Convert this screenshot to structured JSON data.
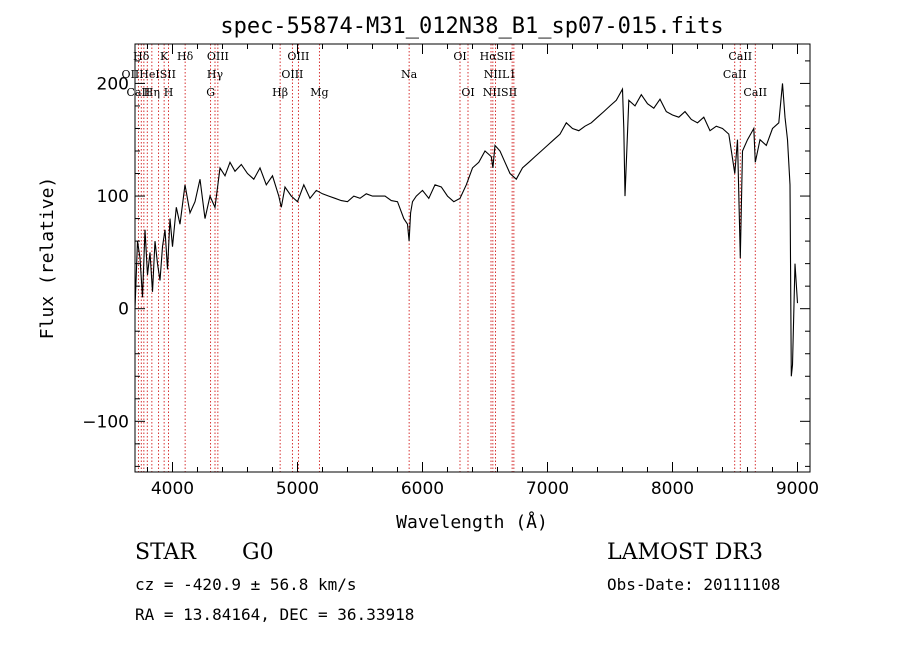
{
  "chart_data": {
    "type": "line",
    "title": "spec-55874-M31_012N38_B1_sp07-015.fits",
    "xlabel": "Wavelength (Å)",
    "ylabel": "Flux (relative)",
    "xlim": [
      3700,
      9100
    ],
    "ylim": [
      -145,
      235
    ],
    "xticks": [
      4000,
      5000,
      6000,
      7000,
      8000,
      9000
    ],
    "yticks": [
      -100,
      0,
      100,
      200
    ],
    "line_color": "#000000",
    "marker_color": "#cc0000",
    "spectrum": {
      "wavelength": [
        3700,
        3720,
        3740,
        3760,
        3780,
        3800,
        3820,
        3840,
        3860,
        3880,
        3900,
        3920,
        3940,
        3960,
        3980,
        4000,
        4030,
        4060,
        4100,
        4140,
        4180,
        4220,
        4260,
        4300,
        4340,
        4380,
        4420,
        4460,
        4500,
        4550,
        4600,
        4650,
        4700,
        4750,
        4800,
        4850,
        4870,
        4900,
        4950,
        5000,
        5050,
        5100,
        5150,
        5200,
        5250,
        5300,
        5350,
        5400,
        5450,
        5500,
        5550,
        5600,
        5650,
        5700,
        5750,
        5800,
        5850,
        5880,
        5893,
        5905,
        5920,
        5950,
        6000,
        6050,
        6100,
        6150,
        6200,
        6250,
        6300,
        6350,
        6400,
        6450,
        6500,
        6550,
        6563,
        6580,
        6620,
        6660,
        6700,
        6750,
        6800,
        6850,
        6900,
        6950,
        7000,
        7050,
        7100,
        7150,
        7200,
        7250,
        7300,
        7350,
        7400,
        7450,
        7500,
        7550,
        7600,
        7610,
        7620,
        7650,
        7700,
        7750,
        7800,
        7850,
        7900,
        7950,
        8000,
        8050,
        8100,
        8150,
        8200,
        8250,
        8300,
        8350,
        8400,
        8450,
        8498,
        8520,
        8542,
        8560,
        8600,
        8650,
        8662,
        8700,
        8750,
        8800,
        8850,
        8880,
        8900,
        8920,
        8940,
        8950,
        8960,
        8980,
        9000
      ],
      "flux": [
        0,
        60,
        45,
        10,
        70,
        30,
        50,
        15,
        60,
        40,
        25,
        55,
        70,
        35,
        80,
        55,
        90,
        75,
        110,
        85,
        95,
        115,
        80,
        100,
        90,
        125,
        118,
        130,
        122,
        128,
        120,
        115,
        125,
        110,
        118,
        100,
        90,
        108,
        100,
        95,
        110,
        98,
        105,
        102,
        100,
        98,
        96,
        95,
        100,
        98,
        102,
        100,
        100,
        100,
        96,
        95,
        80,
        75,
        60,
        85,
        95,
        100,
        105,
        98,
        110,
        108,
        100,
        95,
        98,
        110,
        125,
        130,
        140,
        135,
        125,
        145,
        140,
        130,
        120,
        115,
        125,
        130,
        135,
        140,
        145,
        150,
        155,
        165,
        160,
        158,
        162,
        165,
        170,
        175,
        180,
        185,
        195,
        160,
        100,
        185,
        180,
        190,
        182,
        178,
        186,
        175,
        172,
        170,
        175,
        168,
        165,
        170,
        158,
        162,
        160,
        155,
        120,
        150,
        45,
        140,
        150,
        160,
        130,
        150,
        145,
        160,
        165,
        200,
        170,
        150,
        110,
        -60,
        -50,
        40,
        5
      ]
    },
    "lines": [
      {
        "label": "Hδ",
        "wl": 3750,
        "row": 0
      },
      {
        "label": "K",
        "wl": 3933,
        "row": 0
      },
      {
        "label": "Hδ",
        "wl": 4101,
        "row": 0
      },
      {
        "label": "OIII",
        "wl": 4363,
        "row": 0
      },
      {
        "label": "OIII",
        "wl": 5007,
        "row": 0
      },
      {
        "label": "OI",
        "wl": 6300,
        "row": 0
      },
      {
        "label": "HαSII",
        "wl": 6590,
        "row": 0
      },
      {
        "label": "CaII",
        "wl": 8542,
        "row": 0
      },
      {
        "label": "OIIHeISII",
        "wl": 3810,
        "row": 1
      },
      {
        "label": "Hγ",
        "wl": 4340,
        "row": 1
      },
      {
        "label": "OIII",
        "wl": 4959,
        "row": 1
      },
      {
        "label": "Na",
        "wl": 5893,
        "row": 1
      },
      {
        "label": "NIIL1",
        "wl": 6620,
        "row": 1
      },
      {
        "label": "CaII",
        "wl": 8498,
        "row": 1
      },
      {
        "label": "CaII",
        "wl": 3727,
        "row": 2
      },
      {
        "label": "Hη",
        "wl": 3835,
        "row": 2
      },
      {
        "label": "H",
        "wl": 3968,
        "row": 2
      },
      {
        "label": "G",
        "wl": 4305,
        "row": 2
      },
      {
        "label": "Hβ",
        "wl": 4861,
        "row": 2
      },
      {
        "label": "Mg",
        "wl": 5175,
        "row": 2
      },
      {
        "label": "OI",
        "wl": 6364,
        "row": 2
      },
      {
        "label": "NIISII",
        "wl": 6620,
        "row": 2
      },
      {
        "label": "CaII",
        "wl": 8662,
        "row": 2
      }
    ],
    "marker_wavelengths": [
      3727,
      3750,
      3771,
      3798,
      3835,
      3889,
      3933,
      3968,
      4101,
      4305,
      4340,
      4363,
      4861,
      4959,
      5007,
      5175,
      5893,
      6300,
      6364,
      6548,
      6563,
      6584,
      6717,
      6731,
      8498,
      8542,
      8662
    ]
  },
  "info": {
    "object_class": "STAR",
    "subclass": "G0",
    "survey": "LAMOST DR3",
    "cz_text": "cz = -420.9 ± 56.8 km/s",
    "obs_date_text": "Obs-Date: 20111108",
    "radec_text": "RA =  13.84164, DEC =  36.33918"
  }
}
